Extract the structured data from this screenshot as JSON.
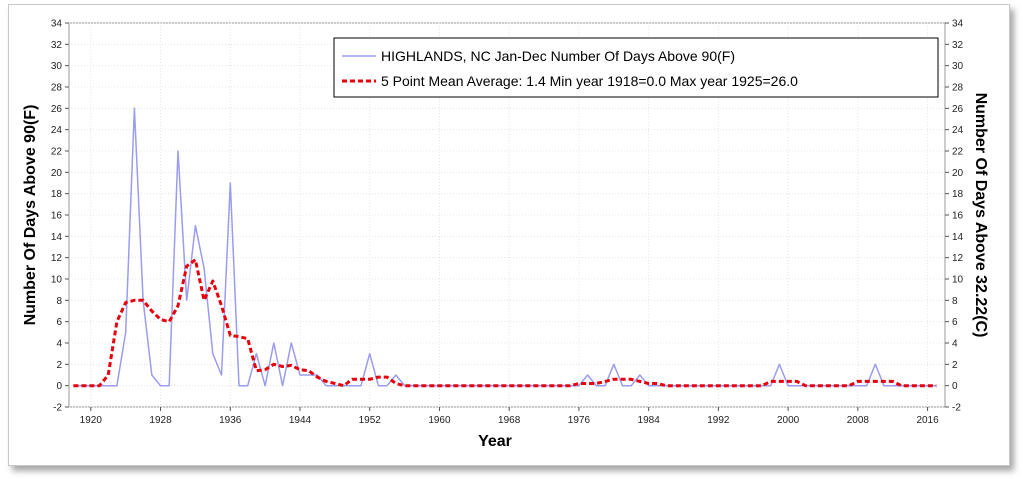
{
  "chart_data": {
    "type": "line",
    "xlabel": "Year",
    "ylabel": "Number Of Days Above 90(F)",
    "ylabel_right": "Number Of Days Above 32.22(C)",
    "xlim": [
      1917.5,
      2018
    ],
    "ylim": [
      -2,
      34
    ],
    "x_ticks": [
      1920,
      1928,
      1936,
      1944,
      1952,
      1960,
      1968,
      1976,
      1984,
      1992,
      2000,
      2008,
      2016
    ],
    "y_ticks": [
      -2,
      0,
      2,
      4,
      6,
      8,
      10,
      12,
      14,
      16,
      18,
      20,
      22,
      24,
      26,
      28,
      30,
      32,
      34
    ],
    "grid": true,
    "legend_position": "top-right",
    "x": [
      1918,
      1919,
      1920,
      1921,
      1922,
      1923,
      1924,
      1925,
      1926,
      1927,
      1928,
      1929,
      1930,
      1931,
      1932,
      1933,
      1934,
      1935,
      1936,
      1937,
      1938,
      1939,
      1940,
      1941,
      1942,
      1943,
      1944,
      1945,
      1946,
      1947,
      1948,
      1949,
      1950,
      1951,
      1952,
      1953,
      1954,
      1955,
      1956,
      1957,
      1958,
      1959,
      1960,
      1961,
      1962,
      1963,
      1964,
      1965,
      1966,
      1967,
      1968,
      1969,
      1970,
      1971,
      1972,
      1973,
      1974,
      1975,
      1976,
      1977,
      1978,
      1979,
      1980,
      1981,
      1982,
      1983,
      1984,
      1985,
      1986,
      1987,
      1988,
      1989,
      1990,
      1991,
      1992,
      1993,
      1994,
      1995,
      1996,
      1997,
      1998,
      1999,
      2000,
      2001,
      2002,
      2003,
      2004,
      2005,
      2006,
      2007,
      2008,
      2009,
      2010,
      2011,
      2012,
      2013,
      2014,
      2015,
      2016,
      2017
    ],
    "series": [
      {
        "name": "HIGHLANDS, NC  Jan-Dec  Number Of Days Above 90(F)",
        "color": "#9a9cf0",
        "style": "solid",
        "values": [
          0,
          0,
          0,
          0,
          0,
          0,
          5,
          26,
          8,
          1,
          0,
          0,
          22,
          8,
          15,
          11,
          3,
          1,
          19,
          0,
          0,
          3,
          0,
          4,
          0,
          4,
          1,
          1,
          1,
          0,
          0,
          0,
          0,
          0,
          3,
          0,
          0,
          1,
          0,
          0,
          0,
          0,
          0,
          0,
          0,
          0,
          0,
          0,
          0,
          0,
          0,
          0,
          0,
          0,
          0,
          0,
          0,
          0,
          0,
          1,
          0,
          0,
          2,
          0,
          0,
          1,
          0,
          0,
          0,
          0,
          0,
          0,
          0,
          0,
          0,
          0,
          0,
          0,
          0,
          0,
          0,
          2,
          0,
          0,
          0,
          0,
          0,
          0,
          0,
          0,
          0,
          0,
          2,
          0,
          0,
          0,
          0,
          0,
          0,
          0
        ]
      },
      {
        "name": "5 Point Mean  Average: 1.4  Min year 1918=0.0  Max year 1925=26.0",
        "color": "#e8000b",
        "style": "dashed",
        "values": [
          0,
          0,
          0,
          0,
          1,
          6,
          7.8,
          8,
          8,
          7,
          6.2,
          6,
          7.5,
          11.2,
          11.8,
          8,
          9.8,
          7.5,
          4.7,
          4.6,
          4.4,
          1.4,
          1.5,
          2,
          1.8,
          1.9,
          1.5,
          1.4,
          0.8,
          0.4,
          0.2,
          0,
          0.6,
          0.6,
          0.6,
          0.8,
          0.8,
          0.2,
          0,
          0,
          0,
          0,
          0,
          0,
          0,
          0,
          0,
          0,
          0,
          0,
          0,
          0,
          0,
          0,
          0,
          0,
          0,
          0,
          0.2,
          0.2,
          0.2,
          0.4,
          0.6,
          0.6,
          0.6,
          0.4,
          0.2,
          0.2,
          0,
          0,
          0,
          0,
          0,
          0,
          0,
          0,
          0,
          0,
          0,
          0,
          0.4,
          0.4,
          0.4,
          0.4,
          0,
          0,
          0,
          0,
          0,
          0,
          0.4,
          0.4,
          0.4,
          0.4,
          0.4,
          0,
          0,
          0,
          0,
          0
        ]
      }
    ]
  }
}
